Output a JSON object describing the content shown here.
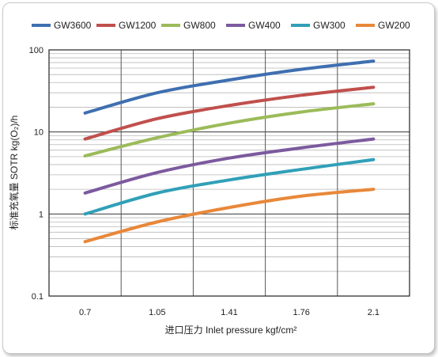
{
  "chart_data": {
    "type": "line",
    "title": "",
    "xlabel": "进口压力  Inlet pressure  kgf/cm²",
    "ylabel": "标准充氧量 SOTR  kg(O₂)/h",
    "x": [
      "0.7",
      "1.05",
      "1.41",
      "1.76",
      "2.1"
    ],
    "yscale": "log",
    "ylim": [
      0.1,
      100
    ],
    "yticks": [
      "0.1",
      "1",
      "10",
      "100"
    ],
    "grid": true,
    "legend_position": "top",
    "series": [
      {
        "name": "GW3600",
        "color": "#3f6fb0",
        "values": [
          17,
          30,
          43,
          58,
          73
        ]
      },
      {
        "name": "GW1200",
        "color": "#c0504d",
        "values": [
          8.2,
          14.5,
          21,
          28,
          35
        ]
      },
      {
        "name": "GW800",
        "color": "#9bbb59",
        "values": [
          5.1,
          8.5,
          12.8,
          17.5,
          22
        ]
      },
      {
        "name": "GW400",
        "color": "#7c5a9e",
        "values": [
          1.8,
          3.2,
          4.8,
          6.4,
          8.2
        ]
      },
      {
        "name": "GW300",
        "color": "#31a0b8",
        "values": [
          1.0,
          1.8,
          2.6,
          3.5,
          4.6
        ]
      },
      {
        "name": "GW200",
        "color": "#e8883a",
        "values": [
          0.46,
          0.8,
          1.2,
          1.65,
          2.0
        ]
      }
    ]
  }
}
